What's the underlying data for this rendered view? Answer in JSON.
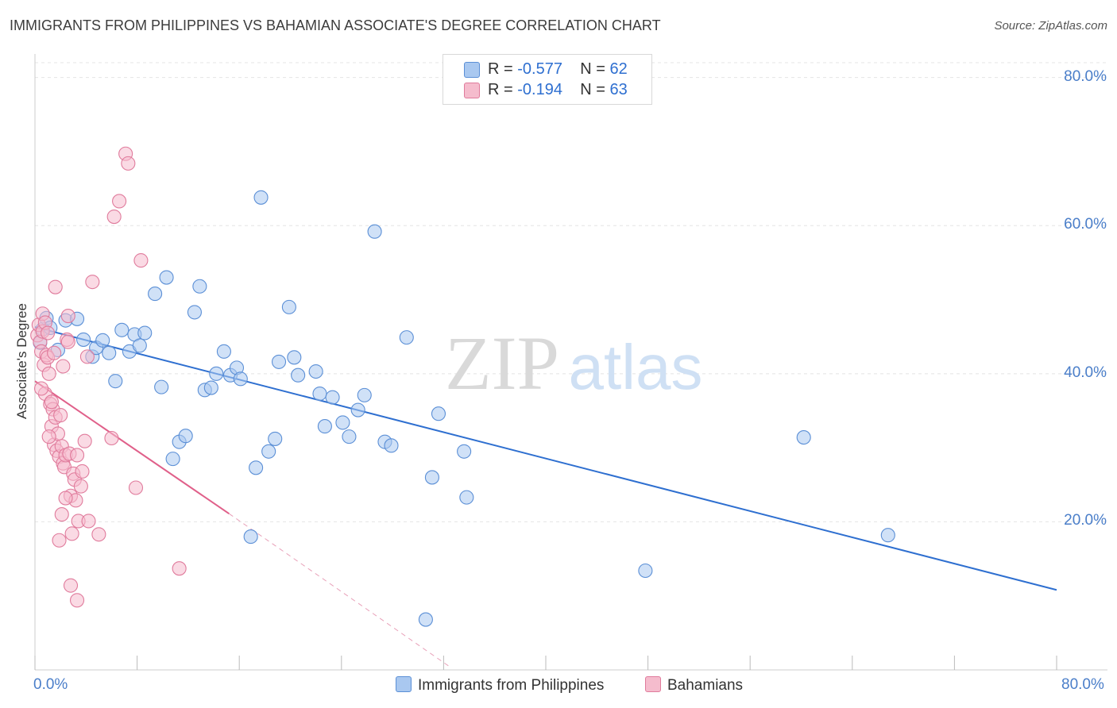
{
  "title": "IMMIGRANTS FROM PHILIPPINES VS BAHAMIAN ASSOCIATE'S DEGREE CORRELATION CHART",
  "source": "Source: ZipAtlas.com",
  "watermark": {
    "zip": "ZIP",
    "atlas": "atlas"
  },
  "legend": {
    "rows": [
      {
        "r_label": "R =",
        "r_value": "-0.577",
        "n_label": "N =",
        "n_value": "62",
        "color": "#a9c8f0",
        "border": "#5b8fd6"
      },
      {
        "r_label": "R =",
        "r_value": "-0.194",
        "n_label": "N =",
        "n_value": "63",
        "color": "#f5bccd",
        "border": "#e07b9c"
      }
    ]
  },
  "bottom_legend": [
    {
      "label": "Immigrants from Philippines",
      "color": "#a9c8f0",
      "border": "#5b8fd6"
    },
    {
      "label": "Bahamians",
      "color": "#f5bccd",
      "border": "#e07b9c"
    }
  ],
  "chart_data": {
    "type": "scatter",
    "title": "IMMIGRANTS FROM PHILIPPINES VS BAHAMIAN ASSOCIATE'S DEGREE CORRELATION CHART",
    "xlabel": "",
    "ylabel": "Associate's Degree",
    "xlim": [
      0,
      80
    ],
    "ylim": [
      0,
      82
    ],
    "x_tick_labels": [
      "0.0%",
      "80.0%"
    ],
    "y_ticks": [
      20,
      40,
      60,
      80
    ],
    "y_tick_labels": [
      "20.0%",
      "40.0%",
      "60.0%",
      "80.0%"
    ],
    "grid": true,
    "legend_position": "top-center",
    "series": [
      {
        "name": "Immigrants from Philippines",
        "color": "#5b8fd6",
        "fill": "#a9c8f0",
        "trend": {
          "x": [
            0,
            80
          ],
          "y": [
            46.3,
            10.8
          ],
          "color": "#2e6fd0"
        },
        "points": [
          [
            0.4,
            44.2
          ],
          [
            0.6,
            46.0
          ],
          [
            0.9,
            47.5
          ],
          [
            1.2,
            46.2
          ],
          [
            1.8,
            43.2
          ],
          [
            2.4,
            47.2
          ],
          [
            3.3,
            47.4
          ],
          [
            3.8,
            44.6
          ],
          [
            4.5,
            42.3
          ],
          [
            4.8,
            43.5
          ],
          [
            5.3,
            44.5
          ],
          [
            5.8,
            42.8
          ],
          [
            6.3,
            39.0
          ],
          [
            6.8,
            45.9
          ],
          [
            7.4,
            43.0
          ],
          [
            7.8,
            45.3
          ],
          [
            8.2,
            43.8
          ],
          [
            8.6,
            45.5
          ],
          [
            9.4,
            50.8
          ],
          [
            9.9,
            38.2
          ],
          [
            10.3,
            53.0
          ],
          [
            10.8,
            28.5
          ],
          [
            11.3,
            30.8
          ],
          [
            11.8,
            31.6
          ],
          [
            12.5,
            48.3
          ],
          [
            12.9,
            51.8
          ],
          [
            13.3,
            37.8
          ],
          [
            13.8,
            38.1
          ],
          [
            14.2,
            40.0
          ],
          [
            14.8,
            43.0
          ],
          [
            15.3,
            39.8
          ],
          [
            15.8,
            40.8
          ],
          [
            16.1,
            39.3
          ],
          [
            16.9,
            18.0
          ],
          [
            17.3,
            27.3
          ],
          [
            17.7,
            63.8
          ],
          [
            18.3,
            29.5
          ],
          [
            18.8,
            31.2
          ],
          [
            19.1,
            41.6
          ],
          [
            19.9,
            49.0
          ],
          [
            20.3,
            42.2
          ],
          [
            20.6,
            39.8
          ],
          [
            22.0,
            40.3
          ],
          [
            22.3,
            37.3
          ],
          [
            22.7,
            32.9
          ],
          [
            23.3,
            36.8
          ],
          [
            24.1,
            33.4
          ],
          [
            24.6,
            31.5
          ],
          [
            25.3,
            35.1
          ],
          [
            25.8,
            37.1
          ],
          [
            26.6,
            59.2
          ],
          [
            27.4,
            30.8
          ],
          [
            27.9,
            30.3
          ],
          [
            29.1,
            44.9
          ],
          [
            30.6,
            6.8
          ],
          [
            31.1,
            26.0
          ],
          [
            31.6,
            34.6
          ],
          [
            33.6,
            29.5
          ],
          [
            33.8,
            23.3
          ],
          [
            47.8,
            13.4
          ],
          [
            60.2,
            31.4
          ],
          [
            66.8,
            18.2
          ]
        ]
      },
      {
        "name": "Bahamians",
        "color": "#e07b9c",
        "fill": "#f5bccd",
        "trend": {
          "x": [
            0,
            15.2
          ],
          "y": [
            39.0,
            21.1
          ],
          "color": "#e0608a"
        },
        "trend_dashed": {
          "x": [
            15.2,
            32.5
          ],
          "y": [
            21.1,
            0.4
          ],
          "color": "#e8a0b8"
        },
        "points": [
          [
            0.2,
            45.2
          ],
          [
            0.3,
            46.6
          ],
          [
            0.4,
            44.3
          ],
          [
            0.5,
            43.0
          ],
          [
            0.6,
            48.1
          ],
          [
            0.6,
            45.7
          ],
          [
            0.7,
            41.2
          ],
          [
            0.8,
            37.3
          ],
          [
            0.9,
            42.5
          ],
          [
            1.0,
            42.2
          ],
          [
            1.1,
            40.0
          ],
          [
            1.2,
            35.9
          ],
          [
            1.3,
            32.9
          ],
          [
            1.4,
            35.2
          ],
          [
            1.5,
            30.4
          ],
          [
            1.6,
            34.1
          ],
          [
            1.7,
            29.6
          ],
          [
            1.8,
            31.9
          ],
          [
            1.9,
            28.8
          ],
          [
            2.0,
            34.4
          ],
          [
            2.1,
            30.2
          ],
          [
            2.2,
            27.9
          ],
          [
            2.3,
            27.4
          ],
          [
            2.4,
            29.0
          ],
          [
            2.5,
            44.6
          ],
          [
            2.6,
            47.8
          ],
          [
            2.7,
            29.2
          ],
          [
            2.8,
            23.5
          ],
          [
            2.9,
            18.4
          ],
          [
            3.0,
            26.5
          ],
          [
            3.1,
            25.7
          ],
          [
            3.2,
            22.9
          ],
          [
            3.3,
            29.0
          ],
          [
            3.4,
            20.1
          ],
          [
            3.6,
            24.8
          ],
          [
            3.9,
            30.9
          ],
          [
            4.1,
            42.3
          ],
          [
            4.5,
            52.4
          ],
          [
            5.0,
            18.3
          ],
          [
            6.0,
            31.3
          ],
          [
            6.2,
            61.2
          ],
          [
            6.6,
            63.3
          ],
          [
            7.1,
            69.7
          ],
          [
            7.3,
            68.4
          ],
          [
            7.9,
            24.6
          ],
          [
            8.3,
            55.3
          ],
          [
            1.6,
            51.7
          ],
          [
            2.1,
            21.0
          ],
          [
            1.9,
            17.5
          ],
          [
            2.8,
            11.4
          ],
          [
            3.3,
            9.4
          ],
          [
            11.3,
            13.7
          ],
          [
            0.8,
            46.9
          ],
          [
            1.0,
            45.5
          ],
          [
            1.5,
            42.8
          ],
          [
            2.2,
            41.0
          ],
          [
            2.6,
            44.3
          ],
          [
            0.5,
            38.0
          ],
          [
            1.3,
            36.2
          ],
          [
            2.4,
            23.2
          ],
          [
            3.7,
            26.8
          ],
          [
            4.2,
            20.1
          ],
          [
            1.1,
            31.5
          ]
        ]
      }
    ]
  }
}
